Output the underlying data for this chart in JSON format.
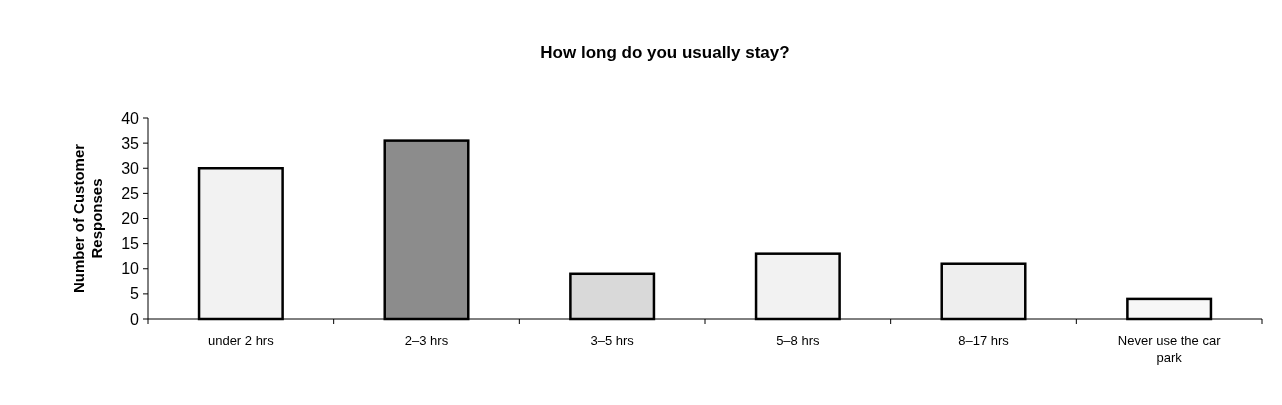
{
  "chart_data": {
    "type": "bar",
    "title": "How long do you usually stay?",
    "ylabel": "Number of Customer Responses",
    "categories": [
      "under 2 hrs",
      "2–3 hrs",
      "3–5 hrs",
      "5–8 hrs",
      "8–17 hrs",
      "Never use the car park"
    ],
    "values": [
      30,
      35.5,
      9,
      13,
      11,
      4
    ],
    "colors": [
      "#f2f2f2",
      "#8c8c8c",
      "#d9d9d9",
      "#f2f2f2",
      "#eeeeee",
      "#f7f7f7"
    ],
    "ylim": [
      0,
      40
    ],
    "yticks": [
      0,
      5,
      10,
      15,
      20,
      25,
      30,
      35,
      40
    ],
    "grid": false
  }
}
